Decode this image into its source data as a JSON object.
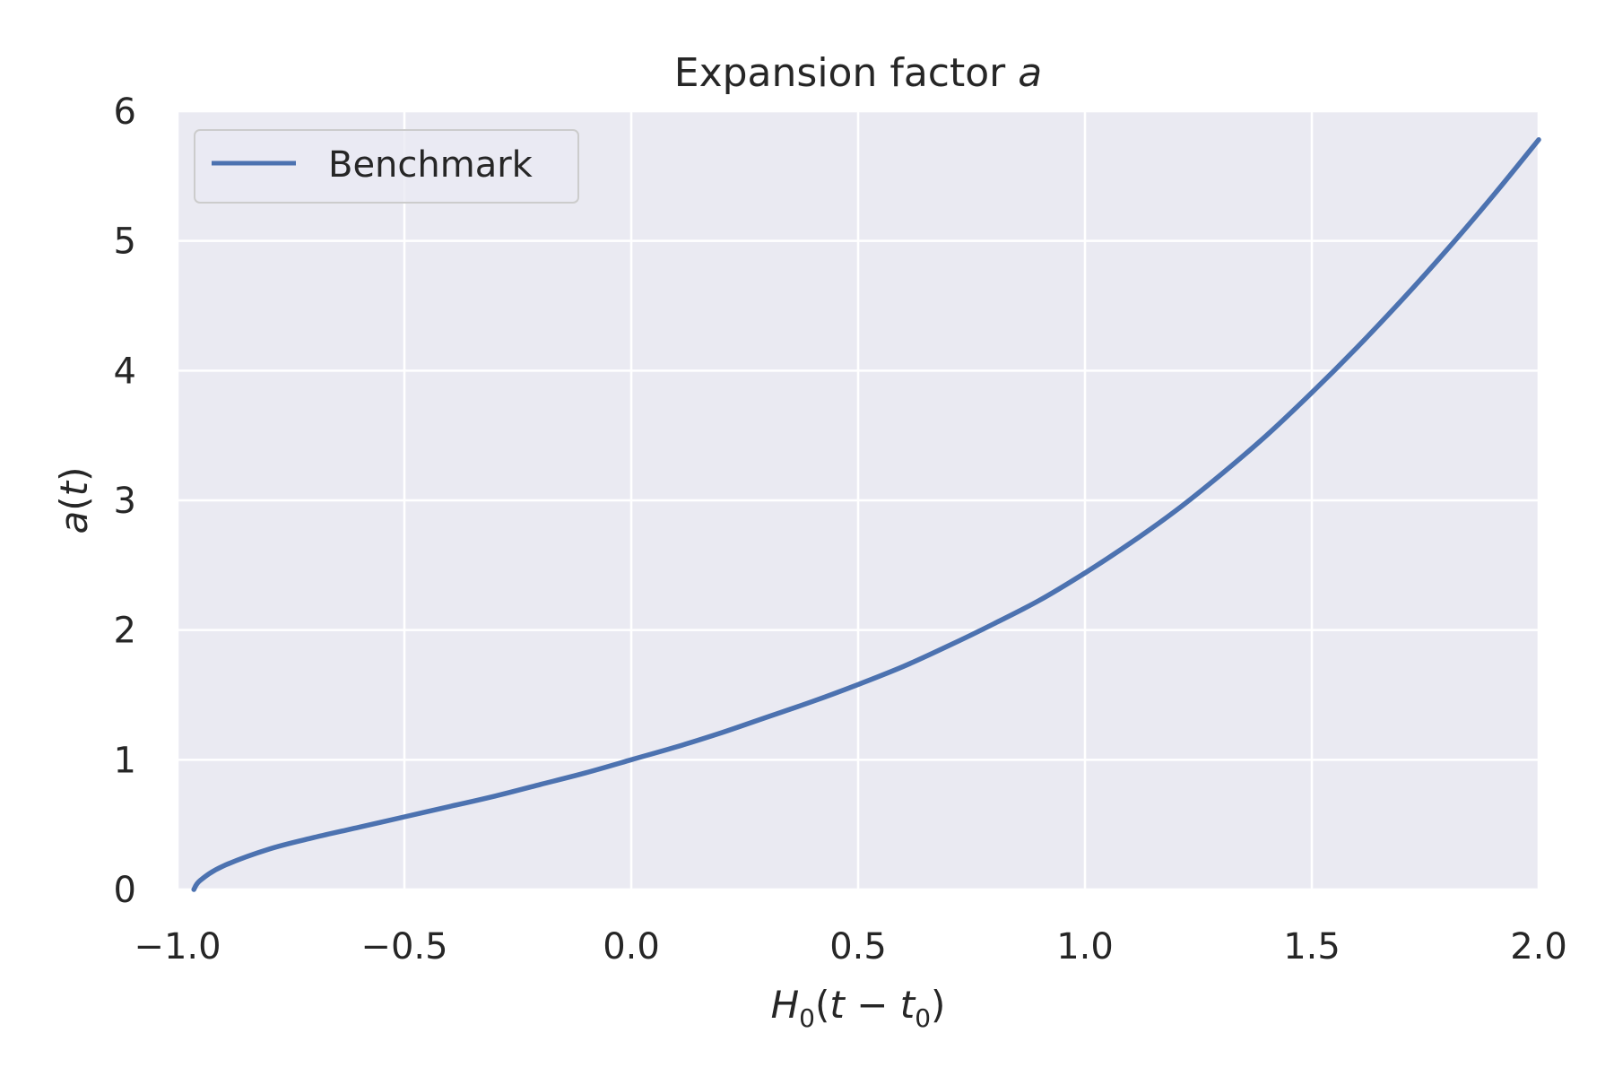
{
  "chart_data": {
    "type": "line",
    "title": {
      "text": "Expansion factor ",
      "var": "a"
    },
    "xlabel": {
      "h": "H",
      "h_sub": "0",
      "open": "(",
      "t": "t",
      "minus": " − ",
      "t0": "t",
      "t0_sub": "0",
      "close": ")"
    },
    "ylabel": {
      "a": "a",
      "open": "(",
      "t": "t",
      "close": ")"
    },
    "xlim": [
      -1.0,
      2.0
    ],
    "ylim": [
      0,
      6
    ],
    "xticks": [
      -1.0,
      -0.5,
      0.0,
      0.5,
      1.0,
      1.5,
      2.0
    ],
    "xtick_labels": [
      "−1.0",
      "−0.5",
      "0.0",
      "0.5",
      "1.0",
      "1.5",
      "2.0"
    ],
    "yticks": [
      0,
      1,
      2,
      3,
      4,
      5,
      6
    ],
    "ytick_labels": [
      "0",
      "1",
      "2",
      "3",
      "4",
      "5",
      "6"
    ],
    "grid": true,
    "legend": {
      "position": "top-left"
    },
    "series": [
      {
        "name": "Benchmark",
        "color": "#4c72b0",
        "x": [
          -0.964,
          -0.95,
          -0.9,
          -0.8,
          -0.7,
          -0.6,
          -0.5,
          -0.4,
          -0.3,
          -0.2,
          -0.1,
          0.0,
          0.1,
          0.2,
          0.3,
          0.4,
          0.5,
          0.6,
          0.7,
          0.8,
          0.9,
          1.0,
          1.1,
          1.2,
          1.3,
          1.4,
          1.5,
          1.6,
          1.7,
          1.8,
          1.9,
          2.0
        ],
        "y": [
          0.0,
          0.07,
          0.18,
          0.31,
          0.4,
          0.48,
          0.56,
          0.64,
          0.72,
          0.81,
          0.9,
          1.0,
          1.1,
          1.21,
          1.33,
          1.45,
          1.58,
          1.72,
          1.88,
          2.05,
          2.23,
          2.44,
          2.67,
          2.92,
          3.2,
          3.5,
          3.83,
          4.18,
          4.55,
          4.94,
          5.35,
          5.78
        ]
      }
    ]
  }
}
